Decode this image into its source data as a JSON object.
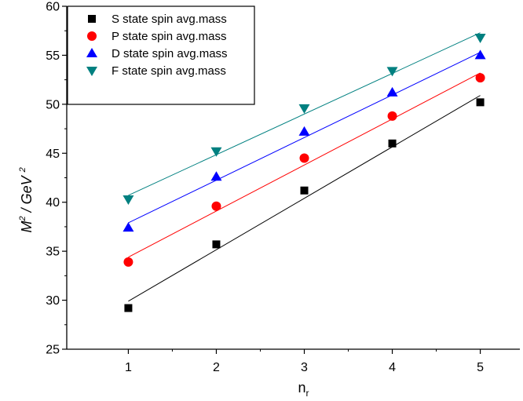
{
  "chart_data": {
    "type": "scatter",
    "x": [
      1,
      2,
      3,
      4,
      5
    ],
    "xlim": [
      0.3,
      5.45
    ],
    "ylim": [
      25,
      60
    ],
    "xticks": [
      1,
      2,
      3,
      4,
      5
    ],
    "yticks": [
      25,
      30,
      35,
      40,
      45,
      50,
      55,
      60
    ],
    "xlabel": {
      "main": "n",
      "sub": "r"
    },
    "ylabel": {
      "base": "M",
      "sup": "2",
      "mid": " / GeV ",
      "sup2": "2"
    },
    "legend_position": "top-left",
    "grid": false,
    "series": [
      {
        "name": "S state spin avg.mass",
        "marker": "square",
        "color": "#000000",
        "values": [
          29.2,
          35.7,
          41.2,
          46.0,
          50.2
        ],
        "fit": [
          29.9,
          35.15,
          40.4,
          45.65,
          50.9
        ]
      },
      {
        "name": "P state spin avg.mass",
        "marker": "circle",
        "color": "#ff0000",
        "values": [
          33.9,
          39.6,
          44.5,
          48.8,
          52.7
        ],
        "fit": [
          34.4,
          39.1,
          43.8,
          48.5,
          53.2
        ]
      },
      {
        "name": "D state spin avg.mass",
        "marker": "triangle-up",
        "color": "#0000ff",
        "values": [
          37.4,
          42.6,
          47.2,
          51.2,
          55.0
        ],
        "fit": [
          37.9,
          42.25,
          46.6,
          50.95,
          55.3
        ]
      },
      {
        "name": "F state spin avg.mass",
        "marker": "triangle-down",
        "color": "#008080",
        "values": [
          40.3,
          45.2,
          49.6,
          53.4,
          56.8
        ],
        "fit": [
          40.7,
          44.85,
          49.0,
          53.15,
          57.3
        ]
      }
    ]
  }
}
